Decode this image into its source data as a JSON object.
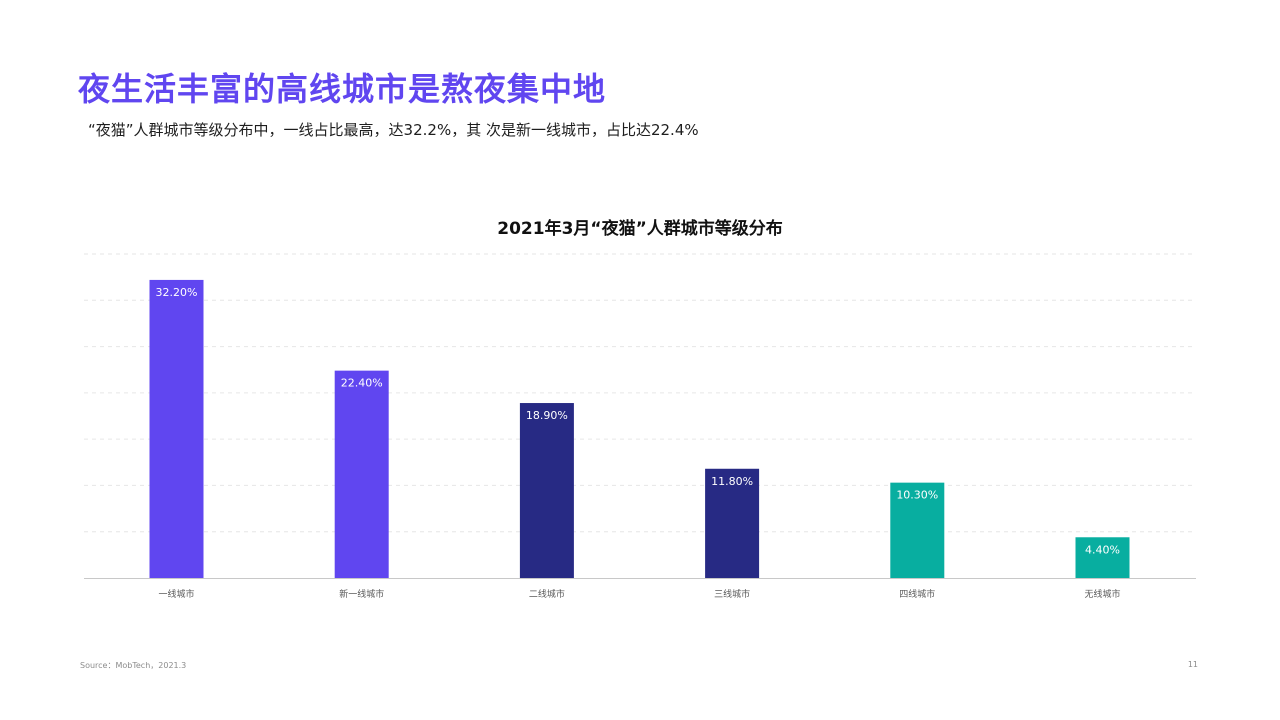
{
  "slide": {
    "title": "夜生活丰富的高线城市是熬夜集中地",
    "subtitle": "“夜猫”人群城市等级分布中，一线占比最高，达32.2%，其 次是新一线城市，占比达22.4%",
    "source": "Source：MobTech，2021.3",
    "page_number": "11"
  },
  "chart_data": {
    "type": "bar",
    "title": "2021年3月“夜猫”人群城市等级分布",
    "categories": [
      "一线城市",
      "新一线城市",
      "二线城市",
      "三线城市",
      "四线城市",
      "无线城市"
    ],
    "values": [
      32.2,
      22.4,
      18.9,
      11.8,
      10.3,
      4.4
    ],
    "data_labels": [
      "32.20%",
      "22.40%",
      "18.90%",
      "11.80%",
      "10.30%",
      "4.40%"
    ],
    "colors": [
      "#6046f0",
      "#6046f0",
      "#272a84",
      "#272a84",
      "#08aea0",
      "#08aea0"
    ],
    "ylim": [
      0,
      35
    ],
    "grid": true,
    "legend": "none",
    "xlabel": "",
    "ylabel": ""
  }
}
